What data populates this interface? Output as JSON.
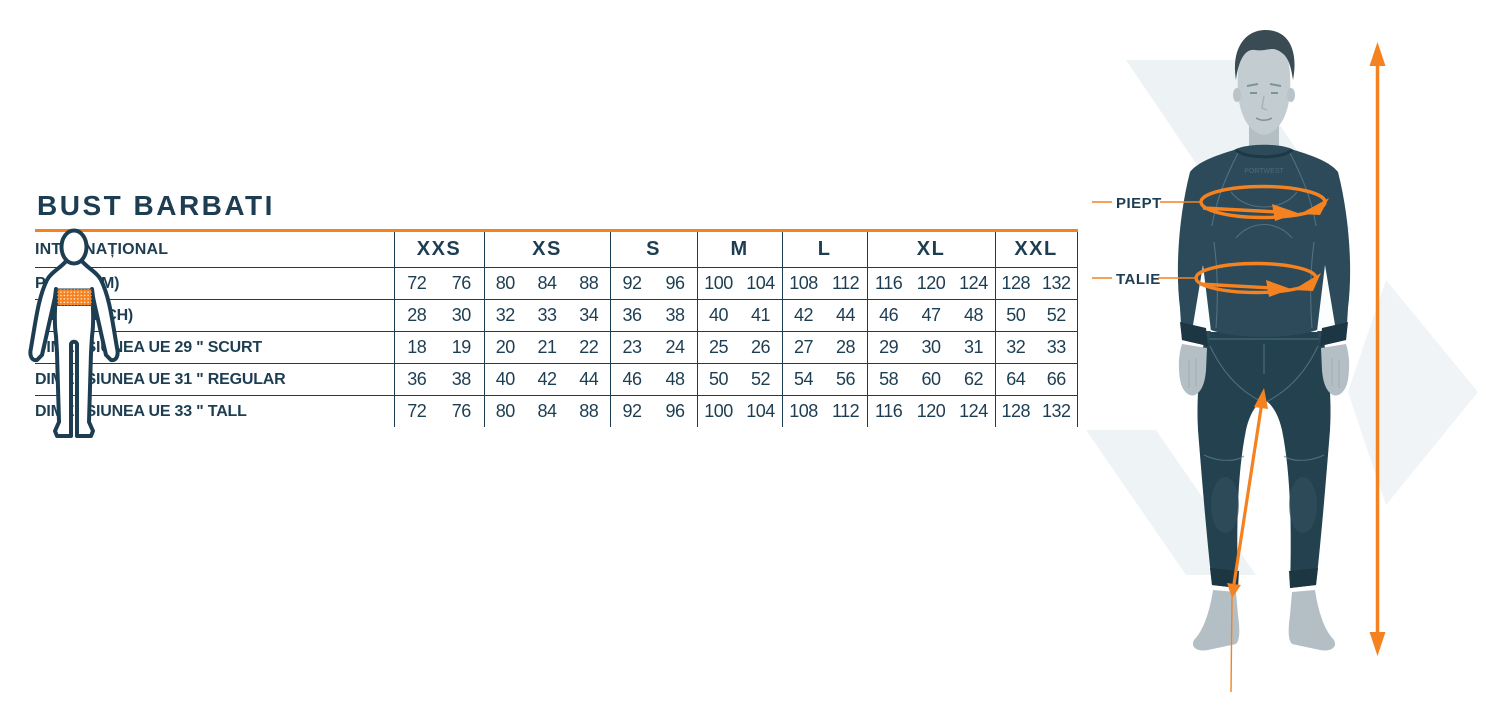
{
  "title": "BUST BARBATI",
  "colors": {
    "navy": "#1d3e52",
    "orange": "#f58220"
  },
  "chart_data": {
    "type": "table",
    "title": "BUST BARBATI",
    "row_header": "INTERNAȚIONAL",
    "column_groups": [
      {
        "label": "XXS",
        "span": 2
      },
      {
        "label": "XS",
        "span": 3
      },
      {
        "label": "S",
        "span": 2
      },
      {
        "label": "M",
        "span": 2
      },
      {
        "label": "L",
        "span": 2
      },
      {
        "label": "XL",
        "span": 3
      },
      {
        "label": "XXL",
        "span": 2
      }
    ],
    "rows": [
      {
        "label": "PIEPT (CM)",
        "values": [
          72,
          76,
          80,
          84,
          88,
          92,
          96,
          100,
          104,
          108,
          112,
          116,
          120,
          124,
          128,
          132
        ]
      },
      {
        "label": "PIEPT (INCH)",
        "values": [
          28,
          30,
          32,
          33,
          34,
          36,
          38,
          40,
          41,
          42,
          44,
          46,
          47,
          48,
          50,
          52
        ]
      },
      {
        "label": "DIMENSIUNEA UE 29 \" SCURT",
        "values": [
          18,
          19,
          20,
          21,
          22,
          23,
          24,
          25,
          26,
          27,
          28,
          29,
          30,
          31,
          32,
          33
        ]
      },
      {
        "label": "DIMENSIUNEA UE 31 \" REGULAR",
        "values": [
          36,
          38,
          40,
          42,
          44,
          46,
          48,
          50,
          52,
          54,
          56,
          58,
          60,
          62,
          64,
          66
        ]
      },
      {
        "label": "DIMENSIUNEA UE 33 \" TALL",
        "values": [
          72,
          76,
          80,
          84,
          88,
          92,
          96,
          100,
          104,
          108,
          112,
          116,
          120,
          124,
          128,
          132
        ]
      }
    ]
  },
  "diagram": {
    "chest_label": "PIEPT",
    "waist_label": "TALIE",
    "logo": "PORTWEST"
  }
}
